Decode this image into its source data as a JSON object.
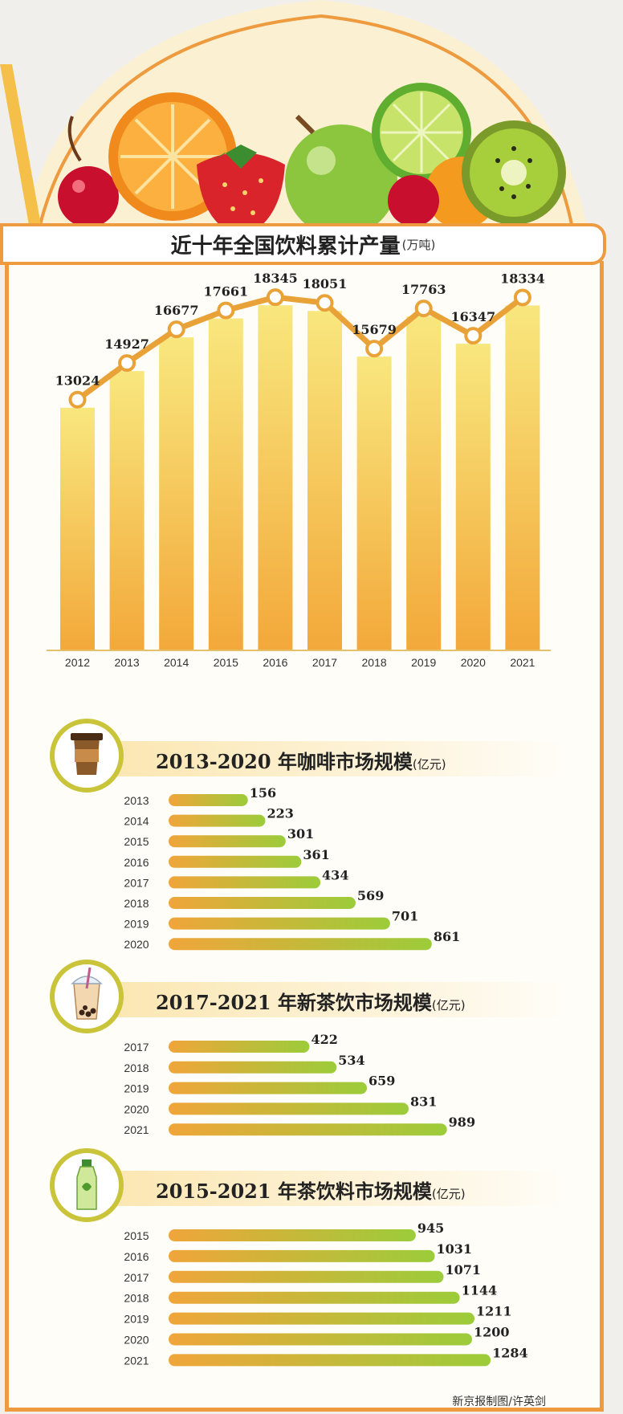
{
  "chart_data": [
    {
      "type": "bar",
      "title": "近十年全国饮料累计产量",
      "unit": "(万吨)",
      "categories": [
        "2012",
        "2013",
        "2014",
        "2015",
        "2016",
        "2017",
        "2018",
        "2019",
        "2020",
        "2021"
      ],
      "values": [
        13024,
        14927,
        16677,
        17661,
        18345,
        18051,
        15679,
        17763,
        16347,
        18334
      ],
      "ylim": [
        0,
        20000
      ],
      "overlay": "line",
      "grid": false
    },
    {
      "type": "bar",
      "orientation": "horizontal",
      "title": "2013-2020 年咖啡市场规模",
      "unit": "(亿元)",
      "categories": [
        "2013",
        "2014",
        "2015",
        "2016",
        "2017",
        "2018",
        "2019",
        "2020"
      ],
      "values": [
        156,
        223,
        301,
        361,
        434,
        569,
        701,
        861
      ]
    },
    {
      "type": "bar",
      "orientation": "horizontal",
      "title": "2017-2021 年新茶饮市场规模",
      "unit": "(亿元)",
      "categories": [
        "2017",
        "2018",
        "2019",
        "2020",
        "2021"
      ],
      "values": [
        422,
        534,
        659,
        831,
        989
      ]
    },
    {
      "type": "bar",
      "orientation": "horizontal",
      "title": "2015-2021 年茶饮料市场规模",
      "unit": "(亿元)",
      "categories": [
        "2015",
        "2016",
        "2017",
        "2018",
        "2019",
        "2020",
        "2021"
      ],
      "values": [
        945,
        1031,
        1071,
        1144,
        1211,
        1200,
        1284
      ]
    }
  ],
  "credit": "新京报制图/许英剑",
  "colors": {
    "border": "#ee9a3e",
    "bar_top": "#f7e37a",
    "bar_bottom": "#f3a93b",
    "line": "#e9a238",
    "hbar_start": "#f0a83a",
    "hbar_end": "#9ccc3a"
  },
  "icons": [
    "cherry-icon",
    "orange-slice-icon",
    "strawberry-icon",
    "apple-icon",
    "lime-icon",
    "kiwi-icon",
    "coffee-cup-icon",
    "bubble-tea-icon",
    "tea-bottle-icon"
  ]
}
